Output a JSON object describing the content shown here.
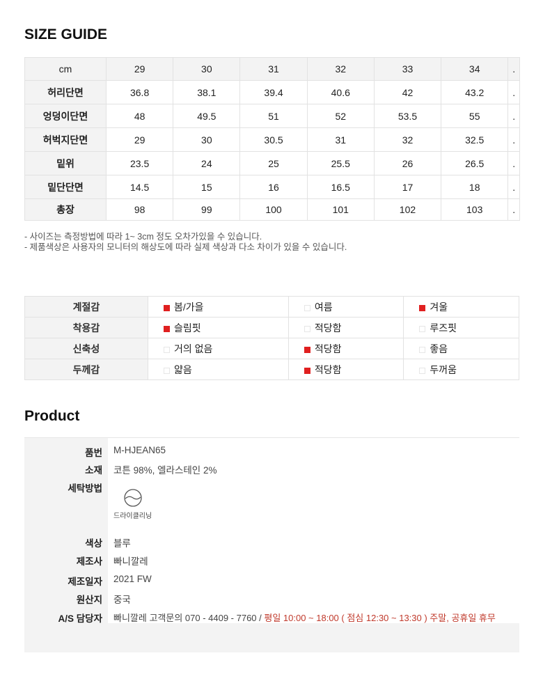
{
  "size_guide": {
    "title": "SIZE GUIDE",
    "header": [
      "cm",
      "29",
      "30",
      "31",
      "32",
      "33",
      "34",
      "."
    ],
    "rows": [
      [
        "허리단면",
        "36.8",
        "38.1",
        "39.4",
        "40.6",
        "42",
        "43.2",
        "."
      ],
      [
        "엉덩이단면",
        "48",
        "49.5",
        "51",
        "52",
        "53.5",
        "55",
        "."
      ],
      [
        "허벅지단면",
        "29",
        "30",
        "30.5",
        "31",
        "32",
        "32.5",
        "."
      ],
      [
        "밑위",
        "23.5",
        "24",
        "25",
        "25.5",
        "26",
        "26.5",
        "."
      ],
      [
        "밑단단면",
        "14.5",
        "15",
        "16",
        "16.5",
        "17",
        "18",
        "."
      ],
      [
        "총장",
        "98",
        "99",
        "100",
        "101",
        "102",
        "103",
        "."
      ]
    ],
    "notes": [
      "- 사이즈는 측정방법에 따라 1~ 3cm 정도 오차가있을 수 있습니다.",
      "- 제품색상은 사용자의 모니터의 해상도에 따라 실제 색상과 다소 차이가 있을 수 있습니다."
    ]
  },
  "properties": {
    "checked_color": "#e02020",
    "rows": [
      {
        "label": "계절감",
        "options": [
          {
            "text": "봄/가을",
            "checked": true
          },
          {
            "text": "여름",
            "checked": false
          },
          {
            "text": "겨울",
            "checked": true
          }
        ]
      },
      {
        "label": "착용감",
        "options": [
          {
            "text": "슬림핏",
            "checked": true
          },
          {
            "text": "적당함",
            "checked": false
          },
          {
            "text": "루즈핏",
            "checked": false
          }
        ]
      },
      {
        "label": "신축성",
        "options": [
          {
            "text": "거의 없음",
            "checked": false
          },
          {
            "text": "적당함",
            "checked": true
          },
          {
            "text": "좋음",
            "checked": false
          }
        ]
      },
      {
        "label": "두께감",
        "options": [
          {
            "text": "얇음",
            "checked": false
          },
          {
            "text": "적당함",
            "checked": true
          },
          {
            "text": "두꺼움",
            "checked": false
          }
        ]
      }
    ]
  },
  "product": {
    "title": "Product",
    "code_label": "품번",
    "code": "M-HJEAN65",
    "material_label": "소재",
    "material": "코튼 98%, 엘라스테인 2%",
    "wash_label": "세탁방법",
    "wash_icon": "dry-cleaning-icon",
    "wash_text": "드라이클리닝",
    "color_label": "색상",
    "color": "블루",
    "maker_label": "제조사",
    "maker": "빠니깔레",
    "date_label": "제조일자",
    "date": "2021 FW",
    "origin_label": "원산지",
    "origin": "중국",
    "as_label": "A/S 담당자",
    "as_contact": "빠니깔레 고객문의 070 - 4409 - 7760 / ",
    "as_hours": "평일 10:00 ~ 18:00 ( 점심 12:30 ~ 13:30 ) 주말, 공휴일 휴무"
  }
}
